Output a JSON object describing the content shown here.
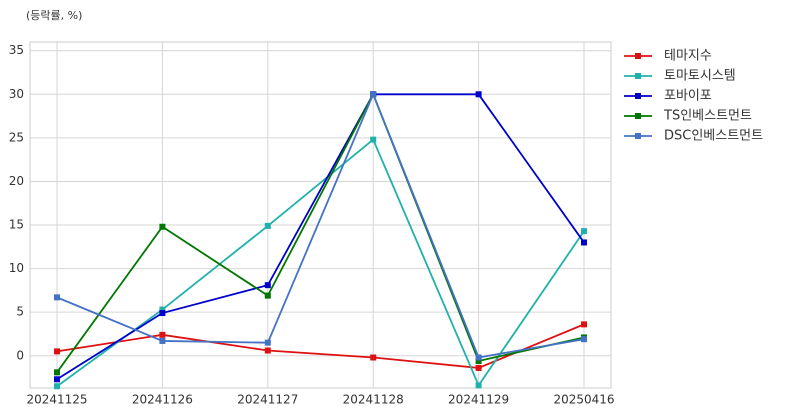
{
  "chart_data": {
    "type": "line",
    "title": "(등락률, %)",
    "categories": [
      "20241125",
      "20241126",
      "20241127",
      "20241128",
      "20241129",
      "20250416"
    ],
    "series": [
      {
        "name": "테마지수",
        "color": "#dd1111",
        "values": [
          0.5,
          2.4,
          0.6,
          -0.2,
          -1.4,
          3.6
        ]
      },
      {
        "name": "토마토시스템",
        "color": "#20b2aa",
        "values": [
          -3.5,
          5.3,
          14.9,
          24.8,
          -3.4,
          14.3
        ]
      },
      {
        "name": "포바이포",
        "color": "#0000cc",
        "values": [
          -2.7,
          4.9,
          8.1,
          30,
          30,
          13.0
        ]
      },
      {
        "name": "TS인베스트먼트",
        "color": "#007700",
        "values": [
          -1.9,
          14.8,
          6.9,
          30,
          -0.6,
          2.1
        ]
      },
      {
        "name": "DSC인베스트먼트",
        "color": "#4472c4",
        "values": [
          6.7,
          1.7,
          1.5,
          30,
          -0.2,
          1.9
        ]
      }
    ],
    "ylim": [
      -3.7,
      36
    ],
    "yticks": [
      0,
      5,
      10,
      15,
      20,
      25,
      30,
      35
    ],
    "grid": true,
    "legend": "right"
  }
}
